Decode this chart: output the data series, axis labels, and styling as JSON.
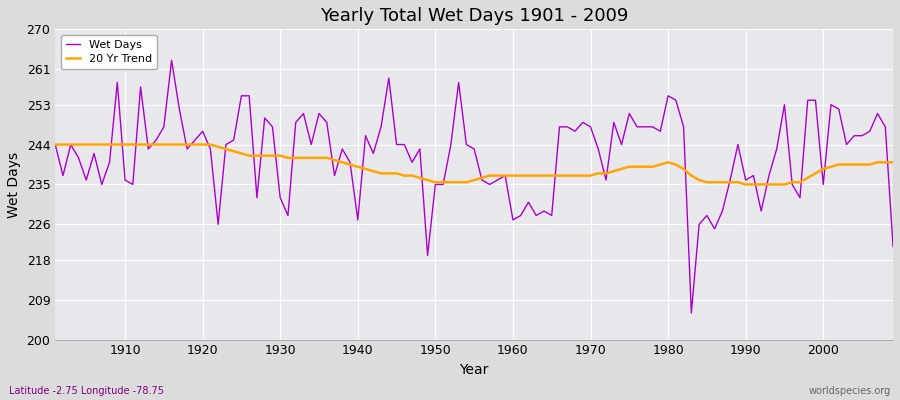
{
  "title": "Yearly Total Wet Days 1901 - 2009",
  "xlabel": "Year",
  "ylabel": "Wet Days",
  "xlim": [
    1901,
    2009
  ],
  "ylim": [
    200,
    270
  ],
  "yticks": [
    200,
    209,
    218,
    226,
    235,
    244,
    253,
    261,
    270
  ],
  "xticks": [
    1910,
    1920,
    1930,
    1940,
    1950,
    1960,
    1970,
    1980,
    1990,
    2000
  ],
  "wet_days_color": "#AA00CC",
  "trend_color": "#FFA500",
  "fig_bg_color": "#DCDCDC",
  "plot_bg_color": "#E8E8EC",
  "subtitle_left": "Latitude -2.75 Longitude -78.75",
  "subtitle_right": "worldspecies.org",
  "years": [
    1901,
    1902,
    1903,
    1904,
    1905,
    1906,
    1907,
    1908,
    1909,
    1910,
    1911,
    1912,
    1913,
    1914,
    1915,
    1916,
    1917,
    1918,
    1919,
    1920,
    1921,
    1922,
    1923,
    1924,
    1925,
    1926,
    1927,
    1928,
    1929,
    1930,
    1931,
    1932,
    1933,
    1934,
    1935,
    1936,
    1937,
    1938,
    1939,
    1940,
    1941,
    1942,
    1943,
    1944,
    1945,
    1946,
    1947,
    1948,
    1949,
    1950,
    1951,
    1952,
    1953,
    1954,
    1955,
    1956,
    1957,
    1958,
    1959,
    1960,
    1961,
    1962,
    1963,
    1964,
    1965,
    1966,
    1967,
    1968,
    1969,
    1970,
    1971,
    1972,
    1973,
    1974,
    1975,
    1976,
    1977,
    1978,
    1979,
    1980,
    1981,
    1982,
    1983,
    1984,
    1985,
    1986,
    1987,
    1988,
    1989,
    1990,
    1991,
    1992,
    1993,
    1994,
    1995,
    1996,
    1997,
    1998,
    1999,
    2000,
    2001,
    2002,
    2003,
    2004,
    2005,
    2006,
    2007,
    2008,
    2009
  ],
  "wet_days": [
    244,
    237,
    244,
    241,
    236,
    242,
    235,
    240,
    258,
    236,
    235,
    257,
    243,
    245,
    248,
    263,
    252,
    243,
    245,
    247,
    243,
    226,
    244,
    245,
    255,
    255,
    232,
    250,
    248,
    232,
    228,
    249,
    251,
    244,
    251,
    249,
    237,
    243,
    240,
    227,
    246,
    242,
    248,
    259,
    244,
    244,
    240,
    243,
    219,
    235,
    235,
    244,
    258,
    244,
    243,
    236,
    235,
    236,
    237,
    227,
    228,
    231,
    228,
    229,
    228,
    248,
    248,
    247,
    249,
    248,
    243,
    236,
    249,
    244,
    251,
    248,
    248,
    248,
    247,
    255,
    254,
    248,
    206,
    226,
    228,
    225,
    229,
    236,
    244,
    236,
    237,
    229,
    237,
    243,
    253,
    235,
    232,
    254,
    254,
    235,
    253,
    252,
    244,
    246,
    246,
    247,
    251,
    248,
    221
  ],
  "trend": [
    244.0,
    244.0,
    244.0,
    244.0,
    244.0,
    244.0,
    244.0,
    244.0,
    244.0,
    244.0,
    244.0,
    244.0,
    244.0,
    244.0,
    244.0,
    244.0,
    244.0,
    244.0,
    244.0,
    244.0,
    244.0,
    243.5,
    243.0,
    242.5,
    242.0,
    241.5,
    241.5,
    241.5,
    241.5,
    241.5,
    241.0,
    241.0,
    241.0,
    241.0,
    241.0,
    241.0,
    240.5,
    240.0,
    239.5,
    239.0,
    238.5,
    238.0,
    237.5,
    237.5,
    237.5,
    237.0,
    237.0,
    236.5,
    236.0,
    235.5,
    235.5,
    235.5,
    235.5,
    235.5,
    236.0,
    236.5,
    237.0,
    237.0,
    237.0,
    237.0,
    237.0,
    237.0,
    237.0,
    237.0,
    237.0,
    237.0,
    237.0,
    237.0,
    237.0,
    237.0,
    237.5,
    237.5,
    238.0,
    238.5,
    239.0,
    239.0,
    239.0,
    239.0,
    239.5,
    240.0,
    239.5,
    238.5,
    237.0,
    236.0,
    235.5,
    235.5,
    235.5,
    235.5,
    235.5,
    235.0,
    235.0,
    235.0,
    235.0,
    235.0,
    235.0,
    235.5,
    235.5,
    236.5,
    237.5,
    238.5,
    239.0,
    239.5,
    239.5,
    239.5,
    239.5,
    239.5,
    240.0,
    240.0,
    240.0
  ]
}
